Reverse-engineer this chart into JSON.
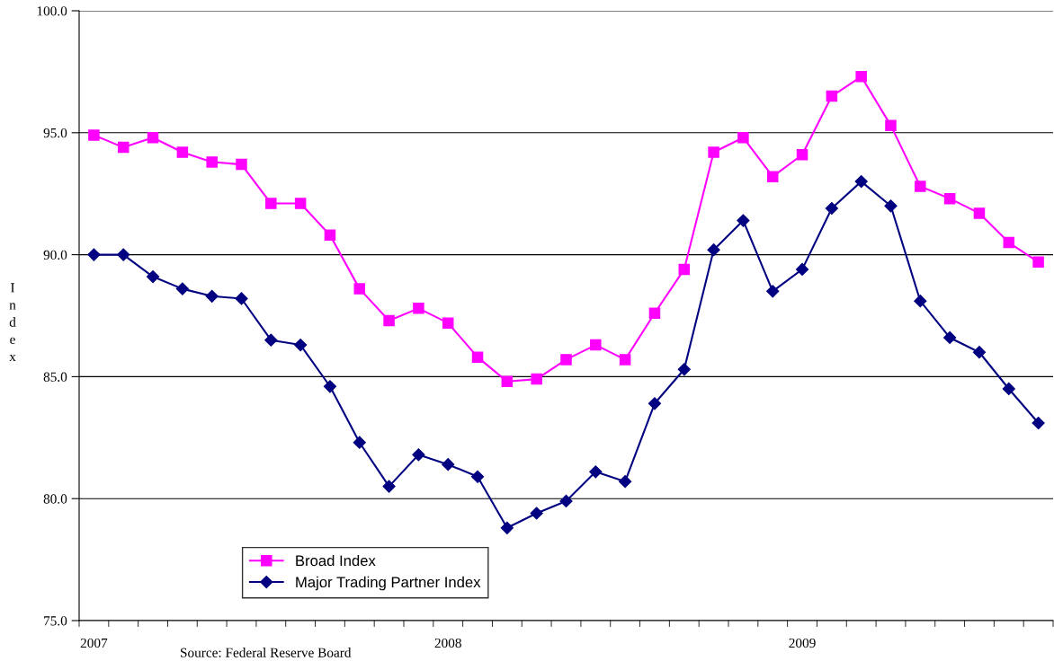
{
  "chart_data": {
    "type": "line",
    "ylabel": "Index",
    "categories": [
      "2007",
      null,
      null,
      null,
      null,
      null,
      null,
      null,
      null,
      null,
      null,
      null,
      "2008",
      null,
      null,
      null,
      null,
      null,
      null,
      null,
      null,
      null,
      null,
      null,
      "2009",
      null,
      null,
      null,
      null,
      null,
      null,
      null,
      null
    ],
    "series": [
      {
        "name": "Broad Index",
        "color": "#ff00ff",
        "marker": "square",
        "values": [
          94.9,
          94.4,
          94.8,
          94.2,
          93.8,
          93.7,
          92.1,
          92.1,
          90.8,
          88.6,
          87.3,
          87.8,
          87.2,
          85.8,
          84.8,
          84.9,
          85.7,
          86.3,
          85.7,
          87.6,
          89.4,
          94.2,
          94.8,
          93.2,
          94.1,
          96.5,
          97.3,
          95.3,
          92.8,
          92.3,
          91.7,
          90.5,
          89.7
        ]
      },
      {
        "name": "Major Trading Partner Index",
        "color": "#000080",
        "marker": "diamond",
        "values": [
          90.0,
          90.0,
          89.1,
          88.6,
          88.3,
          88.2,
          86.5,
          86.3,
          84.6,
          82.3,
          80.5,
          81.8,
          81.4,
          80.9,
          78.8,
          79.4,
          79.9,
          81.1,
          80.7,
          83.9,
          85.3,
          90.2,
          91.4,
          88.5,
          89.4,
          91.9,
          93.0,
          92.0,
          88.1,
          86.6,
          86.0,
          84.5,
          83.1
        ]
      }
    ],
    "ylim": [
      75,
      100
    ],
    "yticks": [
      {
        "value": 75,
        "label": "75.0"
      },
      {
        "value": 80,
        "label": "80.0"
      },
      {
        "value": 85,
        "label": "85.0"
      },
      {
        "value": 90,
        "label": "90.0"
      },
      {
        "value": 95,
        "label": "95.0"
      },
      {
        "value": 100,
        "label": "100.0"
      }
    ],
    "grid": "y",
    "legend": "bottom left",
    "line_style": "solid",
    "annotations": [
      "Source: Federal Reserve Board"
    ]
  }
}
